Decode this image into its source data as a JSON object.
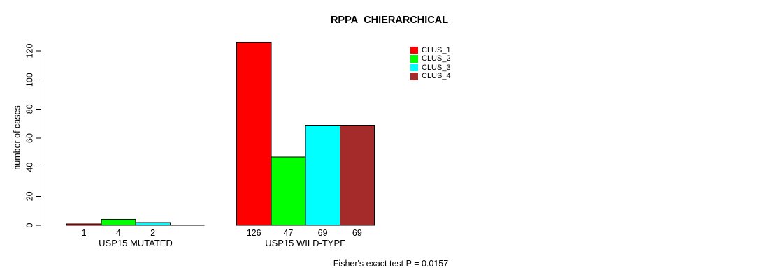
{
  "chart_data": {
    "type": "bar",
    "title": "RPPA_CHIERARCHICAL",
    "ylabel": "number of cases",
    "xlabel": "",
    "ylim": [
      0,
      126
    ],
    "yticks": [
      0,
      20,
      40,
      60,
      80,
      100,
      120
    ],
    "grid": false,
    "legend_position": "top-right",
    "series": [
      {
        "name": "CLUS_1",
        "color": "#FF0000"
      },
      {
        "name": "CLUS_2",
        "color": "#00FF00"
      },
      {
        "name": "CLUS_3",
        "color": "#00FFFF"
      },
      {
        "name": "CLUS_4",
        "color": "#A52A2A"
      }
    ],
    "groups": [
      {
        "label": "USP15 MUTATED",
        "values": [
          1,
          4,
          2,
          0
        ],
        "value_labels": [
          "1",
          "4",
          "2",
          ""
        ]
      },
      {
        "label": "USP15 WILD-TYPE",
        "values": [
          126,
          47,
          69,
          69
        ],
        "value_labels": [
          "126",
          "47",
          "69",
          "69"
        ]
      }
    ],
    "annotation": "Fisher's exact test P = 0.0157"
  }
}
